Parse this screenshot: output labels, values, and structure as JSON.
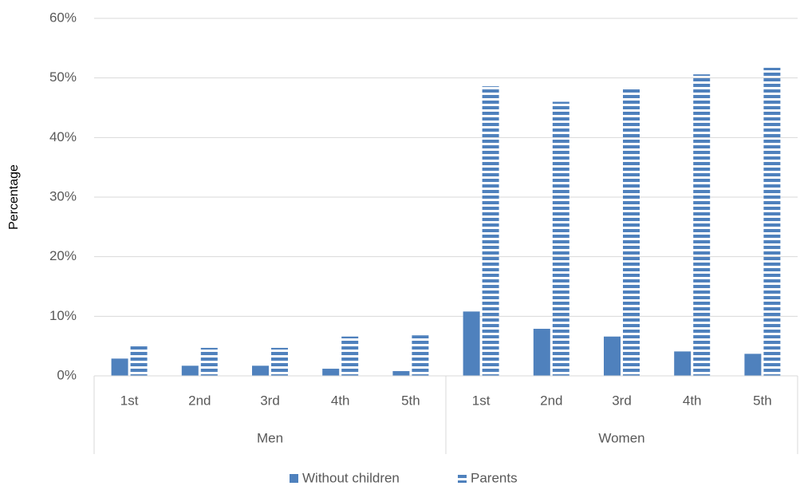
{
  "chart_data": {
    "type": "bar",
    "ylabel": "Percentage",
    "groups": [
      "Men",
      "Women"
    ],
    "categories": [
      "1st",
      "2nd",
      "3rd",
      "4th",
      "5th",
      "1st",
      "2nd",
      "3rd",
      "4th",
      "5th"
    ],
    "series": [
      {
        "name": "Without children",
        "color": "#4f81bd",
        "fill": "solid",
        "values": [
          2.9,
          1.7,
          1.7,
          1.2,
          0.8,
          10.8,
          7.9,
          6.6,
          4.1,
          3.7
        ]
      },
      {
        "name": "Parents",
        "color": "#4f81bd",
        "fill": "horizontal-stripes",
        "values": [
          5.2,
          4.7,
          4.7,
          6.6,
          6.8,
          48.6,
          46.0,
          48.3,
          50.6,
          51.7
        ]
      }
    ],
    "ylim": [
      0,
      60
    ],
    "yticks": [
      {
        "value": 0,
        "label": "0%"
      },
      {
        "value": 10,
        "label": "10%"
      },
      {
        "value": 20,
        "label": "20%"
      },
      {
        "value": 30,
        "label": "30%"
      },
      {
        "value": 40,
        "label": "40%"
      },
      {
        "value": 50,
        "label": "50%"
      },
      {
        "value": 60,
        "label": "60%"
      }
    ],
    "grid": true,
    "legend": "bottom"
  }
}
